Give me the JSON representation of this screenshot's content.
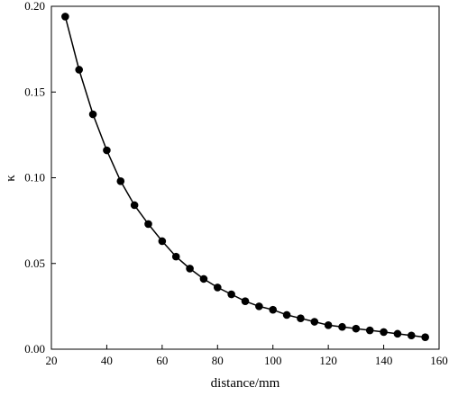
{
  "chart_data": {
    "type": "line",
    "xlabel": "distance/mm",
    "ylabel": "κ",
    "xlim": [
      20,
      160
    ],
    "ylim": [
      0,
      0.2
    ],
    "xticks": [
      20,
      40,
      60,
      80,
      100,
      120,
      140,
      160
    ],
    "xtick_labels": [
      "20",
      "40",
      "60",
      "80",
      "100",
      "120",
      "140",
      "160"
    ],
    "yticks": [
      0,
      0.05,
      0.1,
      0.15,
      0.2
    ],
    "ytick_labels": [
      "0.00",
      "0.05",
      "0.10",
      "0.15",
      "0.20"
    ],
    "grid": false,
    "legend": "none",
    "series": [
      {
        "color": "#000000",
        "marker": "circle",
        "x": [
          25,
          30,
          35,
          40,
          45,
          50,
          55,
          60,
          65,
          70,
          75,
          80,
          85,
          90,
          95,
          100,
          105,
          110,
          115,
          120,
          125,
          130,
          135,
          140,
          145,
          150,
          155
        ],
        "y": [
          0.194,
          0.163,
          0.137,
          0.116,
          0.098,
          0.084,
          0.073,
          0.063,
          0.054,
          0.047,
          0.041,
          0.036,
          0.032,
          0.028,
          0.025,
          0.023,
          0.02,
          0.018,
          0.016,
          0.014,
          0.013,
          0.012,
          0.011,
          0.01,
          0.009,
          0.008,
          0.007
        ]
      }
    ]
  }
}
